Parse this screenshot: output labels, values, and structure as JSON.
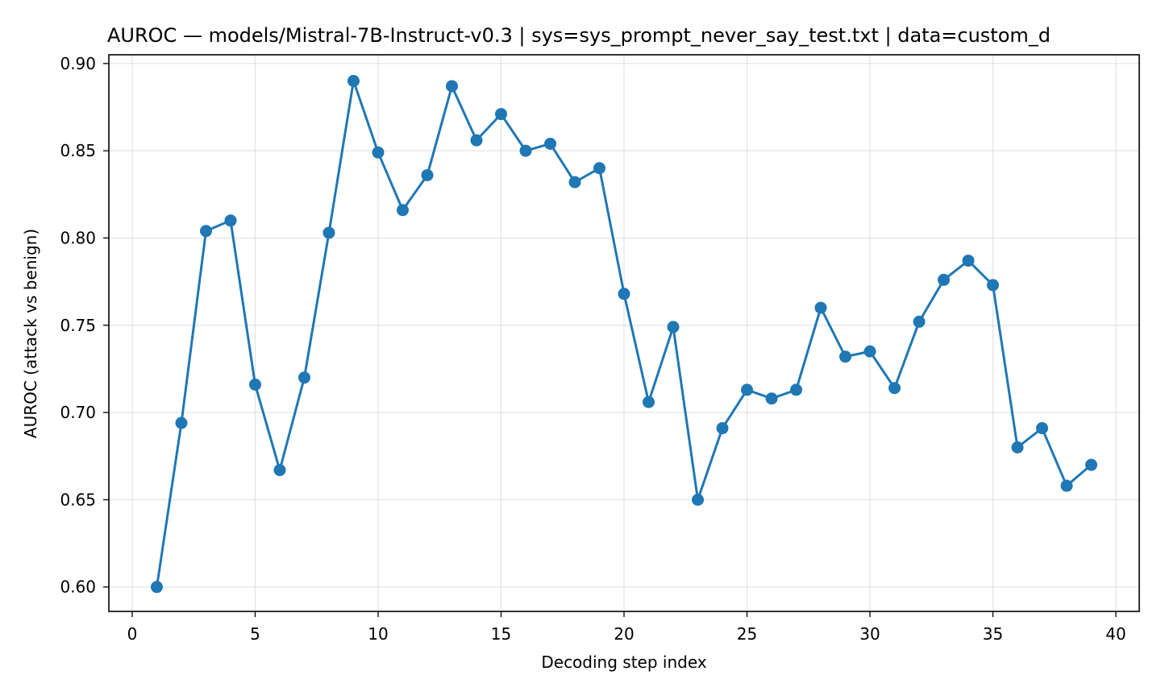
{
  "chart_data": {
    "type": "line",
    "title": "AUROC — models/Mistral-7B-Instruct-v0.3 | sys=sys_prompt_never_say_test.txt | data=custom_d",
    "xlabel": "Decoding step index",
    "ylabel": "AUROC (attack vs benign)",
    "xlim": [
      -0.95,
      40.95
    ],
    "ylim": [
      0.586,
      0.905
    ],
    "xticks": [
      0,
      5,
      10,
      15,
      20,
      25,
      30,
      35,
      40
    ],
    "xtick_labels": [
      "0",
      "5",
      "10",
      "15",
      "20",
      "25",
      "30",
      "35",
      "40"
    ],
    "yticks": [
      0.6,
      0.65,
      0.7,
      0.75,
      0.8,
      0.85,
      0.9
    ],
    "ytick_labels": [
      "0.60",
      "0.65",
      "0.70",
      "0.75",
      "0.80",
      "0.85",
      "0.90"
    ],
    "grid": true,
    "color": "#1f77b4",
    "x": [
      1,
      2,
      3,
      4,
      5,
      6,
      7,
      8,
      9,
      10,
      11,
      12,
      13,
      14,
      15,
      16,
      17,
      18,
      19,
      20,
      21,
      22,
      23,
      24,
      25,
      26,
      27,
      28,
      29,
      30,
      31,
      32,
      33,
      34,
      35,
      36,
      37,
      38,
      39
    ],
    "series": [
      {
        "values": [
          0.6,
          0.694,
          0.804,
          0.81,
          0.716,
          0.667,
          0.72,
          0.803,
          0.89,
          0.849,
          0.816,
          0.836,
          0.887,
          0.856,
          0.871,
          0.85,
          0.854,
          0.832,
          0.84,
          0.768,
          0.706,
          0.749,
          0.65,
          0.691,
          0.713,
          0.708,
          0.713,
          0.76,
          0.732,
          0.735,
          0.714,
          0.752,
          0.776,
          0.787,
          0.773,
          0.68,
          0.691,
          0.658,
          0.67
        ]
      }
    ]
  }
}
